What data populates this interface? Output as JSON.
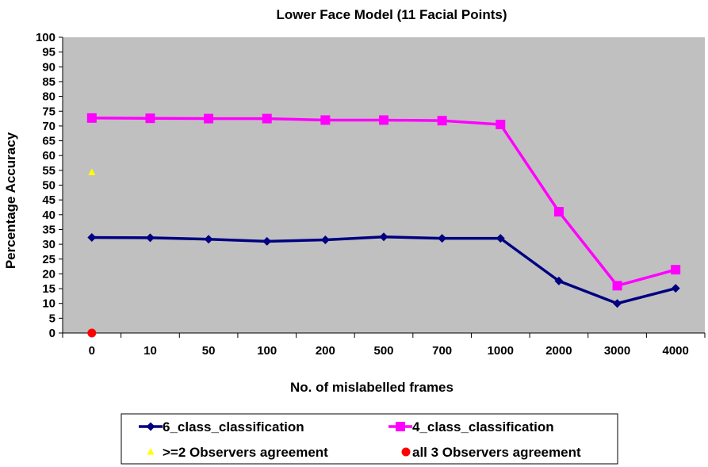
{
  "chart_data": {
    "type": "line",
    "title": "Lower Face Model (11 Facial Points)",
    "xlabel": "No. of mislabelled frames",
    "ylabel": "Percentage Accuracy",
    "categories": [
      "0",
      "10",
      "50",
      "100",
      "200",
      "500",
      "700",
      "1000",
      "2000",
      "3000",
      "4000"
    ],
    "ylim": [
      0,
      100
    ],
    "ytick_step": 5,
    "grid": false,
    "plot_background": "#c0c0c0",
    "legend_position": "bottom",
    "series": [
      {
        "name": "6_class_classification",
        "marker": "diamond",
        "color": "#000080",
        "values": [
          32.3,
          32.2,
          31.7,
          31.0,
          31.5,
          32.5,
          32.0,
          32.0,
          17.6,
          10.0,
          15.1
        ]
      },
      {
        "name": "4_class_classification",
        "marker": "square",
        "color": "#ff00ff",
        "values": [
          72.7,
          72.6,
          72.5,
          72.5,
          72.0,
          72.0,
          71.8,
          70.5,
          41.0,
          16.0,
          21.4
        ]
      },
      {
        "name": ">=2 Observers agreement",
        "marker": "triangle",
        "color": "#ffff00",
        "points": [
          {
            "category": "0",
            "value": 54.3
          }
        ]
      },
      {
        "name": "all 3 Observers agreement",
        "marker": "circle",
        "color": "#ff0000",
        "points": [
          {
            "category": "0",
            "value": 0
          }
        ]
      }
    ]
  }
}
